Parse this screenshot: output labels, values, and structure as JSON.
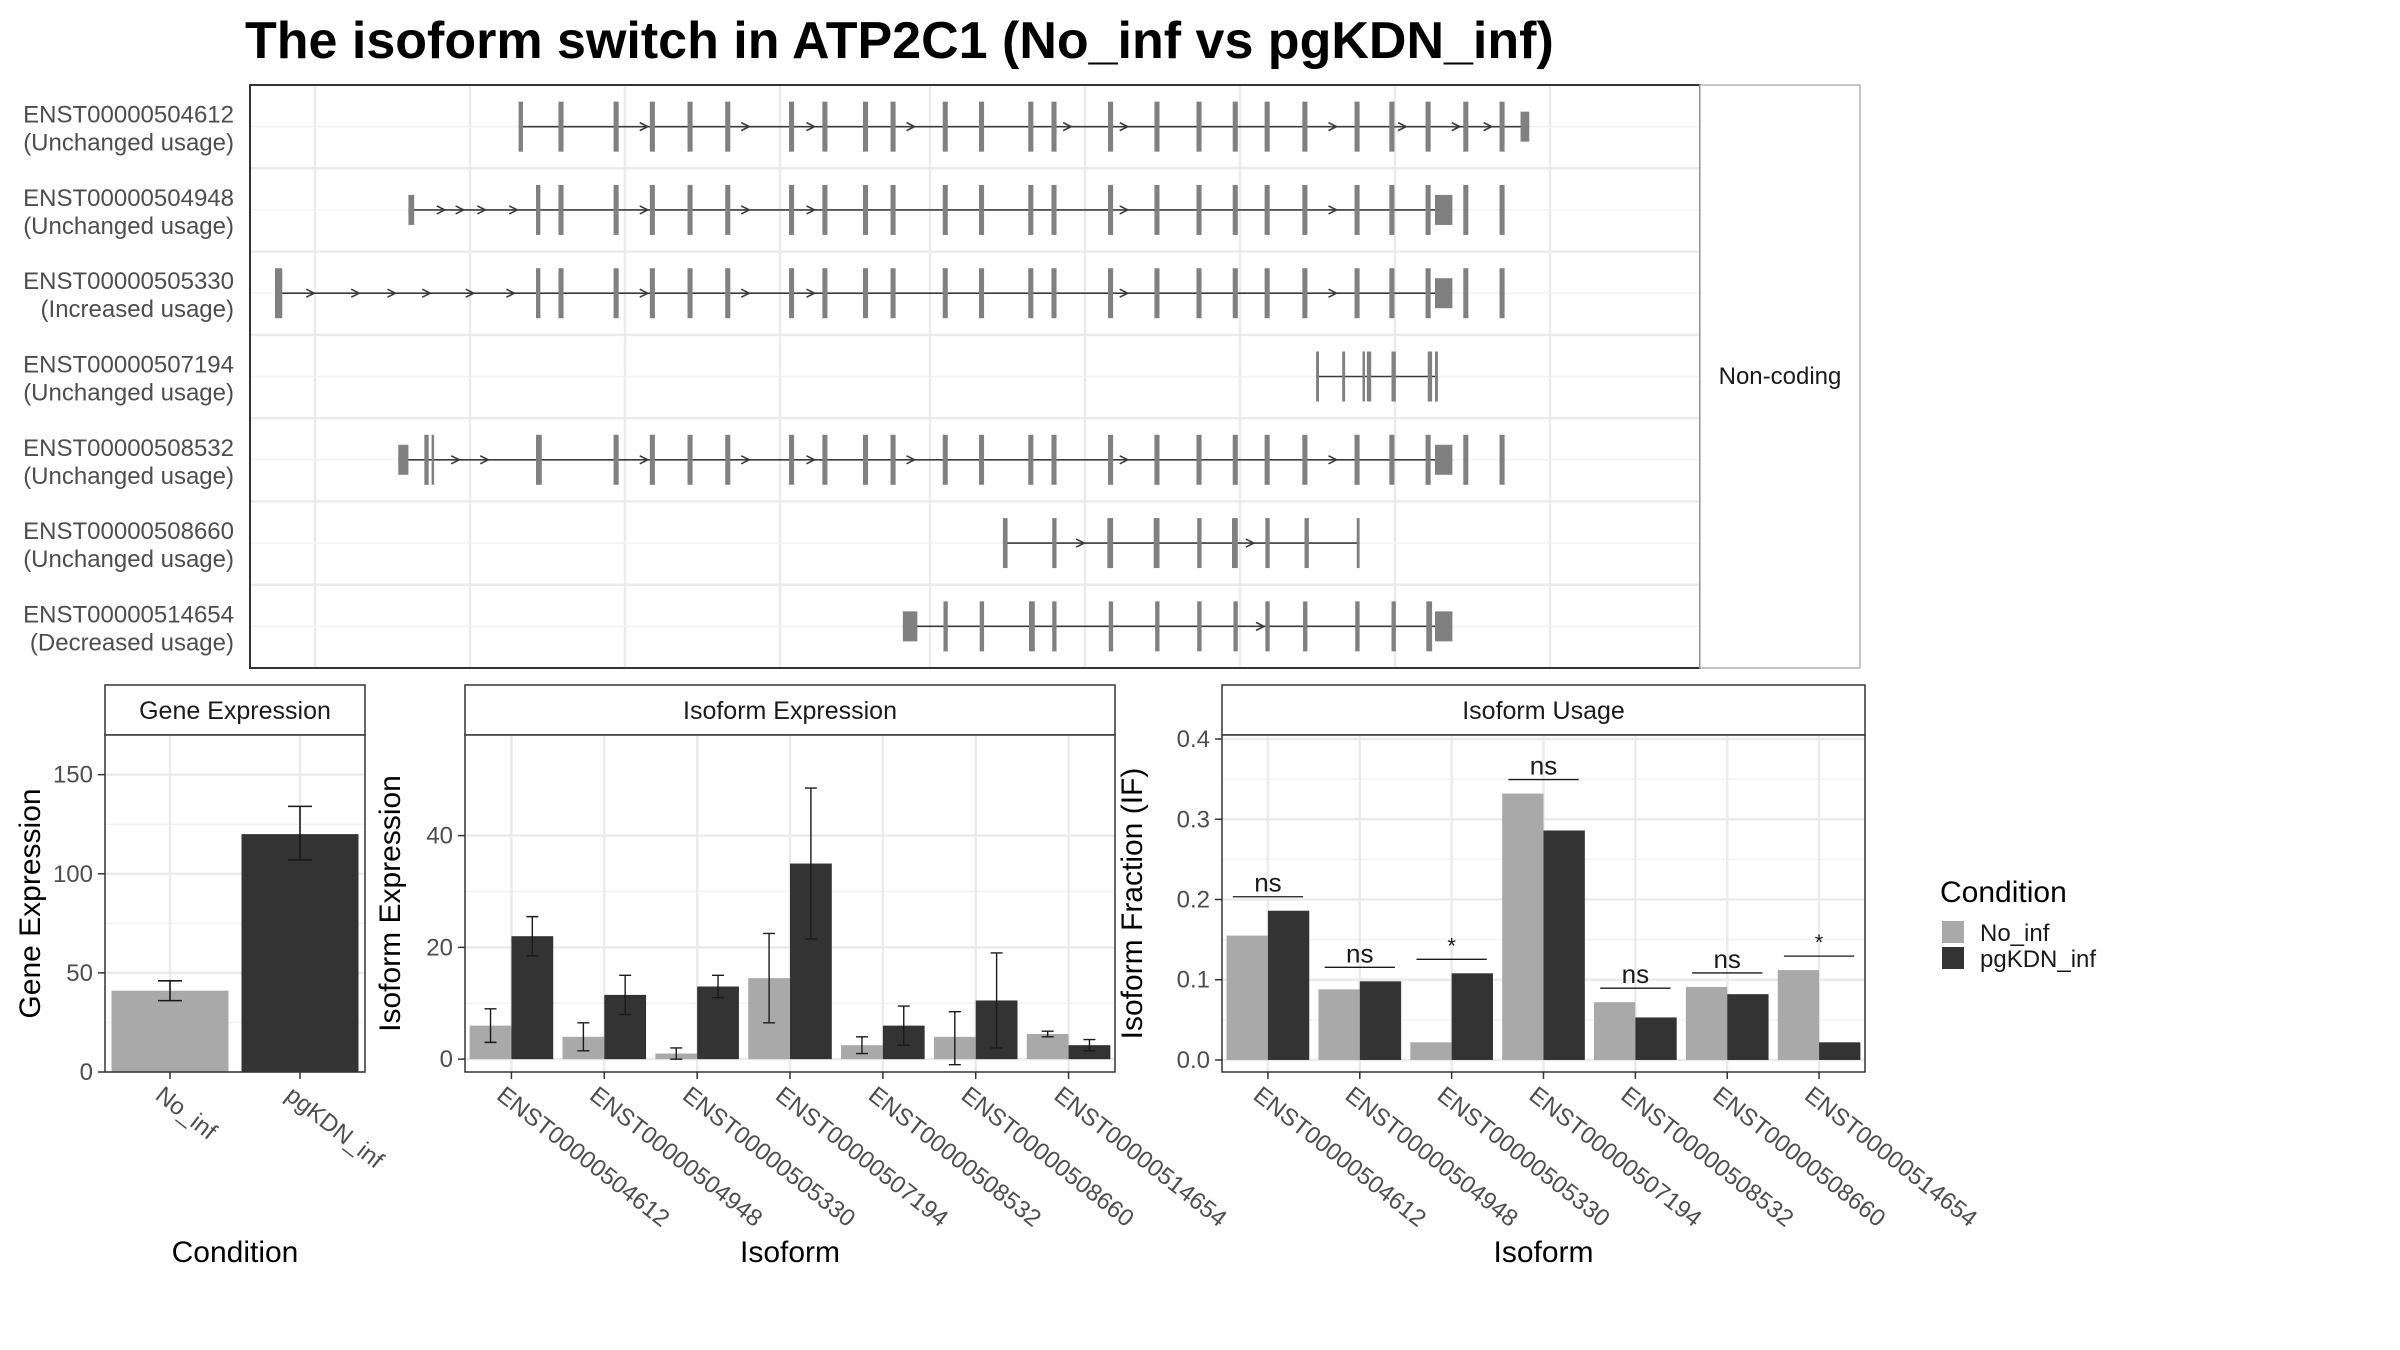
{
  "title": "The isoform switch in ATP2C1 (No_inf vs pgKDN_inf)",
  "structure": {
    "strip_label": "Non-coding",
    "colors": {
      "exon": "#808080",
      "intron": "#3a3a3a",
      "panel_border": "#333333",
      "grid": "#ebebeb"
    },
    "isoforms": [
      {
        "id": "ENST00000504612",
        "usage": "(Unchanged usage)"
      },
      {
        "id": "ENST00000504948",
        "usage": "(Unchanged usage)"
      },
      {
        "id": "ENST00000505330",
        "usage": "(Increased usage)"
      },
      {
        "id": "ENST00000507194",
        "usage": "(Unchanged usage)"
      },
      {
        "id": "ENST00000508532",
        "usage": "(Unchanged usage)"
      },
      {
        "id": "ENST00000508660",
        "usage": "(Unchanged usage)"
      },
      {
        "id": "ENST00000514654",
        "usage": "(Decreased usage)"
      }
    ]
  },
  "legend": {
    "title": "Condition",
    "items": [
      {
        "label": "No_inf",
        "color": "#a9a9a9"
      },
      {
        "label": "pgKDN_inf",
        "color": "#333333"
      }
    ]
  },
  "chart_data": [
    {
      "type": "bar",
      "title": "Gene Expression",
      "xlabel": "Condition",
      "ylabel": "Gene Expression",
      "categories": [
        "No_inf",
        "pgKDN_inf"
      ],
      "values": [
        41,
        120
      ],
      "error": [
        [
          36,
          46
        ],
        [
          107,
          134
        ]
      ],
      "ylim": [
        0,
        170
      ],
      "yticks": [
        0,
        50,
        100,
        150
      ]
    },
    {
      "type": "bar",
      "title": "Isoform Expression",
      "xlabel": "Isoform",
      "ylabel": "Isoform Expression",
      "ylim": [
        -2.3,
        58
      ],
      "yticks": [
        0,
        20,
        40
      ],
      "categories": [
        "ENST00000504612",
        "ENST00000504948",
        "ENST00000505330",
        "ENST00000507194",
        "ENST00000508532",
        "ENST00000508660",
        "ENST00000514654"
      ],
      "series": [
        {
          "name": "No_inf",
          "values": [
            6,
            4,
            1,
            14.5,
            2.5,
            4,
            4.5
          ],
          "error": [
            [
              3,
              9
            ],
            [
              1.5,
              6.5
            ],
            [
              0,
              2
            ],
            [
              6.5,
              22.5
            ],
            [
              1,
              4
            ],
            [
              -1,
              8.5
            ],
            [
              4,
              5
            ]
          ]
        },
        {
          "name": "pgKDN_inf",
          "values": [
            22,
            11.5,
            13,
            35,
            6,
            10.5,
            2.5
          ],
          "error": [
            [
              18.5,
              25.5
            ],
            [
              8,
              15
            ],
            [
              11,
              15
            ],
            [
              21.5,
              48.5
            ],
            [
              2.5,
              9.5
            ],
            [
              2,
              19
            ],
            [
              1.5,
              3.5
            ]
          ]
        }
      ]
    },
    {
      "type": "bar",
      "title": "Isoform Usage",
      "xlabel": "Isoform",
      "ylabel": "Isoform Fraction (IF)",
      "ylim": [
        -0.015,
        0.405
      ],
      "yticks": [
        "0.0",
        "0.1",
        "0.2",
        "0.3",
        "0.4"
      ],
      "categories": [
        "ENST00000504612",
        "ENST00000504948",
        "ENST00000505330",
        "ENST00000507194",
        "ENST00000508532",
        "ENST00000508660",
        "ENST00000514654"
      ],
      "series": [
        {
          "name": "No_inf",
          "values": [
            0.155,
            0.088,
            0.022,
            0.332,
            0.072,
            0.091,
            0.112
          ]
        },
        {
          "name": "pgKDN_inf",
          "values": [
            0.186,
            0.098,
            0.108,
            0.286,
            0.053,
            0.082,
            0.022
          ]
        }
      ],
      "significance": [
        "ns",
        "ns",
        "*",
        "ns",
        "ns",
        "ns",
        "*"
      ]
    }
  ]
}
